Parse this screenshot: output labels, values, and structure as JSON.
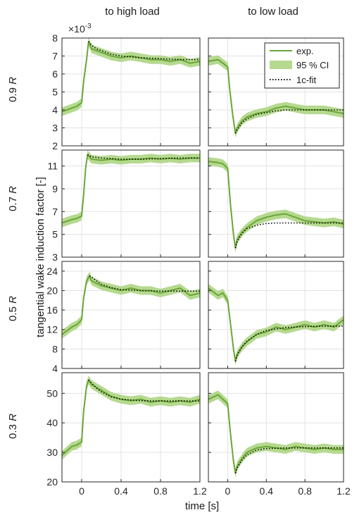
{
  "figure": {
    "column_titles": [
      "to high load",
      "to low load"
    ],
    "row_labels": [
      "0.9",
      "0.7",
      "0.5",
      "0.3"
    ],
    "row_label_unit": "R",
    "ylabel": "tangential wake induction factor [-]",
    "xlabel": "time [s]",
    "exponent_label": "×10",
    "exponent_power": "-3"
  },
  "legend": {
    "items": [
      {
        "label": "exp.",
        "kind": "line",
        "color": "#6aa636"
      },
      {
        "label": "95 % CI",
        "kind": "patch",
        "color": "#b5d98f"
      },
      {
        "label": "1c-fit",
        "kind": "dotted",
        "color": "#000000"
      }
    ]
  },
  "colors": {
    "exp": "#6aa636",
    "ci": "#b5d98f",
    "fit": "#000000",
    "grid": "#e3e3e3",
    "axis": "#262626"
  },
  "chart_data": [
    {
      "type": "line",
      "row": "0.9 R",
      "column": "to high load",
      "xlim": [
        -0.2,
        1.2
      ],
      "ylim": [
        2,
        8
      ],
      "yticks": [
        2,
        3,
        4,
        5,
        6,
        7,
        8
      ],
      "xticks": [
        0,
        0.4,
        0.8,
        1.2
      ],
      "y_scale_factor": "1e-3",
      "series": [
        {
          "name": "exp.",
          "x": [
            -0.2,
            -0.1,
            -0.05,
            0,
            0.02,
            0.05,
            0.07,
            0.1,
            0.15,
            0.2,
            0.3,
            0.4,
            0.5,
            0.6,
            0.7,
            0.8,
            0.9,
            1.0,
            1.1,
            1.2
          ],
          "y": [
            3.9,
            4.1,
            4.2,
            4.4,
            5.6,
            6.8,
            7.8,
            7.4,
            7.3,
            7.2,
            7.0,
            6.9,
            7.0,
            6.9,
            6.8,
            6.8,
            6.7,
            6.8,
            6.6,
            6.7
          ]
        },
        {
          "name": "1c-fit",
          "x": [
            0.07,
            0.1,
            0.15,
            0.2,
            0.3,
            0.4,
            0.5,
            0.6,
            0.8,
            1.0,
            1.2
          ],
          "y": [
            7.8,
            7.6,
            7.4,
            7.3,
            7.1,
            7.0,
            6.95,
            6.9,
            6.85,
            6.8,
            6.8
          ]
        }
      ]
    },
    {
      "type": "line",
      "row": "0.9 R",
      "column": "to low load",
      "xlim": [
        -0.2,
        1.2
      ],
      "ylim": [
        2,
        8
      ],
      "yticks": [
        2,
        3,
        4,
        5,
        6,
        7,
        8
      ],
      "xticks": [
        0,
        0.4,
        0.8,
        1.2
      ],
      "y_scale_factor": "1e-3",
      "series": [
        {
          "name": "exp.",
          "x": [
            -0.2,
            -0.1,
            -0.05,
            0,
            0.02,
            0.05,
            0.08,
            0.1,
            0.15,
            0.2,
            0.3,
            0.4,
            0.5,
            0.6,
            0.7,
            0.8,
            0.9,
            1.0,
            1.1,
            1.2
          ],
          "y": [
            6.7,
            6.8,
            6.6,
            6.4,
            5.2,
            3.8,
            2.7,
            3.0,
            3.4,
            3.6,
            3.8,
            3.9,
            4.1,
            4.2,
            4.1,
            4.0,
            4.0,
            4.0,
            3.9,
            3.8
          ]
        },
        {
          "name": "1c-fit",
          "x": [
            0.08,
            0.1,
            0.15,
            0.2,
            0.3,
            0.4,
            0.5,
            0.6,
            0.8,
            1.0,
            1.2
          ],
          "y": [
            2.7,
            2.9,
            3.3,
            3.5,
            3.75,
            3.85,
            3.95,
            4.0,
            4.0,
            4.0,
            4.0
          ]
        }
      ]
    },
    {
      "type": "line",
      "row": "0.7 R",
      "column": "to high load",
      "xlim": [
        -0.2,
        1.2
      ],
      "ylim": [
        3,
        12.4
      ],
      "yticks": [
        3,
        5,
        7,
        9,
        11
      ],
      "xticks": [
        0,
        0.4,
        0.8,
        1.2
      ],
      "y_scale_factor": "1e-3",
      "series": [
        {
          "name": "exp.",
          "x": [
            -0.2,
            -0.1,
            -0.05,
            0,
            0.02,
            0.04,
            0.06,
            0.1,
            0.2,
            0.3,
            0.4,
            0.5,
            0.6,
            0.7,
            0.8,
            0.9,
            1.0,
            1.1,
            1.2
          ],
          "y": [
            6.0,
            6.3,
            6.4,
            6.6,
            8.5,
            10.8,
            12.0,
            11.6,
            11.5,
            11.6,
            11.5,
            11.6,
            11.6,
            11.7,
            11.6,
            11.7,
            11.6,
            11.7,
            11.7
          ]
        },
        {
          "name": "1c-fit",
          "x": [
            0.06,
            0.1,
            0.2,
            0.4,
            0.6,
            0.8,
            1.0,
            1.2
          ],
          "y": [
            12.0,
            11.8,
            11.7,
            11.6,
            11.6,
            11.65,
            11.7,
            11.7
          ]
        }
      ]
    },
    {
      "type": "line",
      "row": "0.7 R",
      "column": "to low load",
      "xlim": [
        -0.2,
        1.2
      ],
      "ylim": [
        3,
        12.4
      ],
      "yticks": [
        3,
        5,
        7,
        9,
        11
      ],
      "xticks": [
        0,
        0.4,
        0.8,
        1.2
      ],
      "y_scale_factor": "1e-3",
      "series": [
        {
          "name": "exp.",
          "x": [
            -0.2,
            -0.1,
            -0.05,
            0,
            0.03,
            0.06,
            0.08,
            0.1,
            0.15,
            0.2,
            0.3,
            0.4,
            0.5,
            0.6,
            0.7,
            0.8,
            0.9,
            1.0,
            1.1,
            1.2
          ],
          "y": [
            11.4,
            11.3,
            11.2,
            10.8,
            7.5,
            5.0,
            3.8,
            4.6,
            5.2,
            5.6,
            6.2,
            6.5,
            6.7,
            6.8,
            6.5,
            6.2,
            6.1,
            6.0,
            6.1,
            5.9
          ]
        },
        {
          "name": "1c-fit",
          "x": [
            0.08,
            0.1,
            0.15,
            0.2,
            0.3,
            0.4,
            0.5,
            0.6,
            0.8,
            1.0,
            1.2
          ],
          "y": [
            3.8,
            4.4,
            5.1,
            5.5,
            5.8,
            5.95,
            6.0,
            6.0,
            6.0,
            6.0,
            6.0
          ]
        }
      ]
    },
    {
      "type": "line",
      "row": "0.5 R",
      "column": "to high load",
      "xlim": [
        -0.2,
        1.2
      ],
      "ylim": [
        4,
        26
      ],
      "yticks": [
        4,
        8,
        12,
        16,
        20,
        24
      ],
      "xticks": [
        0,
        0.4,
        0.8,
        1.2
      ],
      "y_scale_factor": "1e-3",
      "series": [
        {
          "name": "exp.",
          "x": [
            -0.2,
            -0.1,
            -0.05,
            0,
            0.02,
            0.05,
            0.08,
            0.1,
            0.15,
            0.2,
            0.3,
            0.4,
            0.5,
            0.6,
            0.7,
            0.8,
            0.9,
            1.0,
            1.1,
            1.2
          ],
          "y": [
            11.0,
            12.5,
            13.0,
            14.0,
            18.5,
            22.0,
            23.0,
            22.0,
            21.5,
            21.0,
            20.5,
            20.0,
            20.5,
            20.0,
            20.0,
            19.5,
            20.0,
            20.5,
            19.0,
            19.5
          ]
        },
        {
          "name": "1c-fit",
          "x": [
            0.08,
            0.1,
            0.15,
            0.2,
            0.3,
            0.4,
            0.6,
            0.8,
            1.0,
            1.2
          ],
          "y": [
            23.0,
            22.8,
            22.0,
            21.3,
            20.6,
            20.2,
            20.0,
            19.9,
            19.9,
            19.9
          ]
        }
      ]
    },
    {
      "type": "line",
      "row": "0.5 R",
      "column": "to low load",
      "xlim": [
        -0.2,
        1.2
      ],
      "ylim": [
        4,
        26
      ],
      "yticks": [
        4,
        8,
        12,
        16,
        20,
        24
      ],
      "xticks": [
        0,
        0.4,
        0.8,
        1.2
      ],
      "y_scale_factor": "1e-3",
      "series": [
        {
          "name": "exp.",
          "x": [
            -0.2,
            -0.1,
            -0.05,
            0,
            0.03,
            0.06,
            0.08,
            0.1,
            0.15,
            0.2,
            0.3,
            0.4,
            0.5,
            0.6,
            0.7,
            0.8,
            0.9,
            1.0,
            1.1,
            1.2
          ],
          "y": [
            20.5,
            19.0,
            19.5,
            18.0,
            13.0,
            8.0,
            5.5,
            7.0,
            8.5,
            9.5,
            11.0,
            11.5,
            12.5,
            12.0,
            12.5,
            13.0,
            12.5,
            13.0,
            12.5,
            14.0
          ]
        },
        {
          "name": "1c-fit",
          "x": [
            0.08,
            0.1,
            0.15,
            0.2,
            0.3,
            0.4,
            0.6,
            0.8,
            1.0,
            1.2
          ],
          "y": [
            5.5,
            6.8,
            8.5,
            9.6,
            11.0,
            11.8,
            12.4,
            12.6,
            12.7,
            12.7
          ]
        }
      ]
    },
    {
      "type": "line",
      "row": "0.3 R",
      "column": "to high load",
      "xlim": [
        -0.2,
        1.2
      ],
      "ylim": [
        20,
        57
      ],
      "yticks": [
        20,
        30,
        40,
        50
      ],
      "xticks": [
        0,
        0.4,
        0.8,
        1.2
      ],
      "y_scale_factor": "1e-3",
      "series": [
        {
          "name": "exp.",
          "x": [
            -0.2,
            -0.1,
            -0.05,
            0,
            0.02,
            0.05,
            0.07,
            0.1,
            0.15,
            0.2,
            0.3,
            0.4,
            0.5,
            0.6,
            0.7,
            0.8,
            0.9,
            1.0,
            1.1,
            1.2
          ],
          "y": [
            29.0,
            32.0,
            32.5,
            33.5,
            44.0,
            52.5,
            54.5,
            53.0,
            52.0,
            51.0,
            49.0,
            48.0,
            47.5,
            48.0,
            47.0,
            47.5,
            47.0,
            47.5,
            47.0,
            48.0
          ]
        },
        {
          "name": "1c-fit",
          "x": [
            0.07,
            0.1,
            0.15,
            0.2,
            0.3,
            0.4,
            0.6,
            0.8,
            1.0,
            1.2
          ],
          "y": [
            54.5,
            53.5,
            51.8,
            50.5,
            48.8,
            48.0,
            47.5,
            47.4,
            47.4,
            47.4
          ]
        }
      ]
    },
    {
      "type": "line",
      "row": "0.3 R",
      "column": "to low load",
      "xlim": [
        -0.2,
        1.2
      ],
      "ylim": [
        20,
        57
      ],
      "yticks": [
        20,
        30,
        40,
        50
      ],
      "xticks": [
        0,
        0.4,
        0.8,
        1.2
      ],
      "y_scale_factor": "1e-3",
      "series": [
        {
          "name": "exp.",
          "x": [
            -0.2,
            -0.1,
            -0.05,
            0,
            0.03,
            0.06,
            0.08,
            0.1,
            0.15,
            0.2,
            0.3,
            0.4,
            0.5,
            0.6,
            0.7,
            0.8,
            0.9,
            1.0,
            1.1,
            1.2
          ],
          "y": [
            48.0,
            49.5,
            48.0,
            46.5,
            36.0,
            27.0,
            23.0,
            25.5,
            28.0,
            30.0,
            31.5,
            32.0,
            31.5,
            31.0,
            32.0,
            31.5,
            31.0,
            31.5,
            31.0,
            31.0
          ]
        },
        {
          "name": "1c-fit",
          "x": [
            0.08,
            0.1,
            0.15,
            0.2,
            0.3,
            0.4,
            0.6,
            0.8,
            1.0,
            1.2
          ],
          "y": [
            23.0,
            24.8,
            27.5,
            29.2,
            30.8,
            31.3,
            31.5,
            31.5,
            31.5,
            31.5
          ]
        }
      ]
    }
  ]
}
